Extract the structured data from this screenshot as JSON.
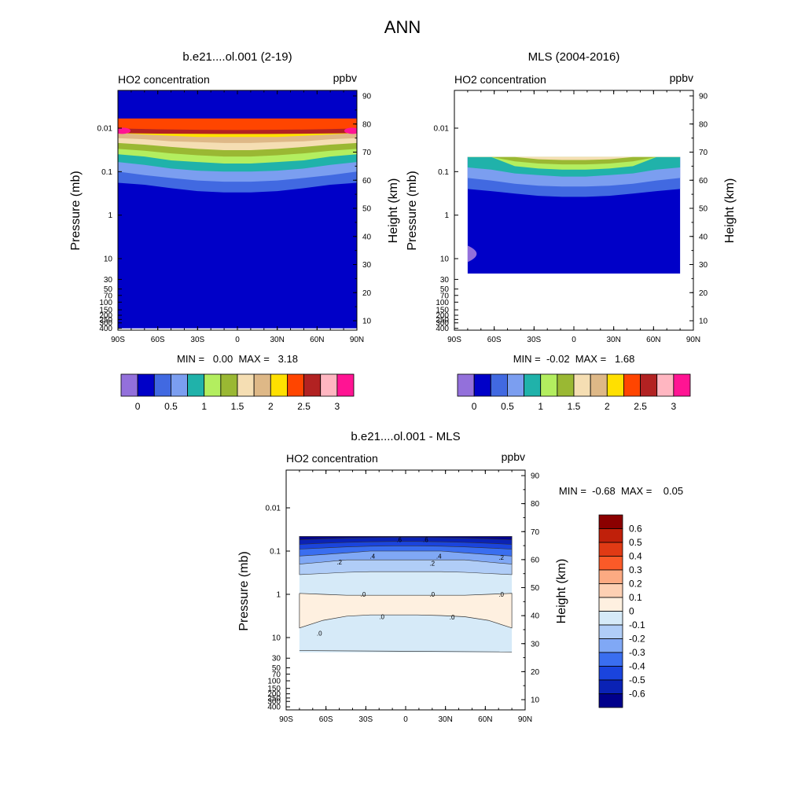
{
  "figure_title": "ANN",
  "chart_data": [
    {
      "type": "heatmap",
      "panel": "model",
      "title": "b.e21....ol.001 (2-19)",
      "left_label": "HO2 concentration",
      "right_label": "ppbv",
      "xlabel": "",
      "ylabel": "Pressure (mb)",
      "ylabel_right": "Height (km)",
      "x_ticks": [
        "90S",
        "60S",
        "30S",
        "0",
        "30N",
        "60N",
        "90N"
      ],
      "x_tick_values": [
        -90,
        -60,
        -30,
        0,
        30,
        60,
        90
      ],
      "y_ticks": [
        "0.01",
        "0.1",
        "1",
        "10",
        "30",
        "50",
        "70",
        "100",
        "150",
        "200",
        "250",
        "300",
        "400"
      ],
      "y_tick_values": [
        0.01,
        0.1,
        1,
        10,
        30,
        50,
        70,
        100,
        150,
        200,
        250,
        300,
        400
      ],
      "height_ticks": [
        "90",
        "80",
        "70",
        "60",
        "50",
        "40",
        "30",
        "20",
        "10"
      ],
      "height_tick_values": [
        90,
        80,
        70,
        60,
        50,
        40,
        30,
        20,
        10
      ],
      "ylim": [
        400,
        0.0015
      ],
      "xlim": [
        -90,
        90
      ],
      "stats": "MIN =   0.00  MAX =   3.18",
      "colorbar": {
        "labels": [
          "0",
          "0.5",
          "1",
          "1.5",
          "2",
          "2.5",
          "3"
        ],
        "label_values": [
          0,
          0.5,
          1,
          1.5,
          2,
          2.5,
          3
        ],
        "colors": [
          "#9370db",
          "#0000c8",
          "#4169e1",
          "#7b9ef0",
          "#20b2aa",
          "#b3ee5f",
          "#9ab833",
          "#f5deb3",
          "#deb887",
          "#ffe000",
          "#ff4500",
          "#b22222",
          "#ffb6c1",
          "#ff1493"
        ],
        "levels": [
          0,
          0.25,
          0.5,
          0.75,
          1,
          1.25,
          1.5,
          1.75,
          2,
          2.25,
          2.5,
          2.75,
          3
        ]
      },
      "bands": [
        {
          "level": 0.25,
          "color": "#4169e1",
          "pressure": [
            0.18,
            0.2,
            0.24,
            0.28,
            0.3,
            0.3,
            0.28,
            0.24,
            0.2,
            0.18
          ]
        },
        {
          "level": 0.5,
          "color": "#7b9ef0",
          "pressure": [
            0.1,
            0.12,
            0.14,
            0.16,
            0.17,
            0.17,
            0.16,
            0.14,
            0.12,
            0.1
          ]
        },
        {
          "level": 0.75,
          "color": "#20b2aa",
          "pressure": [
            0.06,
            0.07,
            0.085,
            0.095,
            0.1,
            0.1,
            0.095,
            0.085,
            0.07,
            0.06
          ]
        },
        {
          "level": 1,
          "color": "#b3ee5f",
          "pressure": [
            0.04,
            0.045,
            0.055,
            0.06,
            0.065,
            0.065,
            0.06,
            0.055,
            0.045,
            0.04
          ]
        },
        {
          "level": 1.25,
          "color": "#9ab833",
          "pressure": [
            0.03,
            0.033,
            0.038,
            0.042,
            0.045,
            0.045,
            0.042,
            0.038,
            0.033,
            0.03
          ]
        },
        {
          "level": 1.5,
          "color": "#f5deb3",
          "pressure": [
            0.022,
            0.024,
            0.027,
            0.03,
            0.032,
            0.032,
            0.03,
            0.027,
            0.024,
            0.022
          ]
        },
        {
          "level": 1.75,
          "color": "#deb887",
          "pressure": [
            0.017,
            0.018,
            0.02,
            0.021,
            0.022,
            0.022,
            0.021,
            0.02,
            0.018,
            0.017
          ]
        },
        {
          "level": 2,
          "color": "#ffe000",
          "pressure": [
            0.013,
            0.014,
            0.015,
            0.016,
            0.016,
            0.016,
            0.016,
            0.015,
            0.014,
            0.013
          ]
        },
        {
          "level": 2.25,
          "color": "#ff4500",
          "pressure": [
            0.011,
            0.012,
            0.0125,
            0.013,
            0.013,
            0.013,
            0.013,
            0.0125,
            0.012,
            0.011
          ]
        }
      ],
      "top_band": {
        "color": "#0000c8",
        "pressure": 0.006
      },
      "base_color": "#0000c8"
    },
    {
      "type": "heatmap",
      "panel": "obs",
      "title": "MLS (2004-2016)",
      "left_label": "HO2 concentration",
      "right_label": "ppbv",
      "xlabel": "",
      "ylabel": "Pressure (mb)",
      "ylabel_right": "Height (km)",
      "x_ticks": [
        "90S",
        "60S",
        "30S",
        "0",
        "30N",
        "60N",
        "90N"
      ],
      "x_tick_values": [
        -90,
        -60,
        -30,
        0,
        30,
        60,
        90
      ],
      "y_ticks": [
        "0.01",
        "0.1",
        "1",
        "10",
        "30",
        "50",
        "70",
        "100",
        "150",
        "200",
        "250",
        "300",
        "400"
      ],
      "y_tick_values": [
        0.01,
        0.1,
        1,
        10,
        30,
        50,
        70,
        100,
        150,
        200,
        250,
        300,
        400
      ],
      "height_ticks": [
        "90",
        "80",
        "70",
        "60",
        "50",
        "40",
        "30",
        "20",
        "10"
      ],
      "height_tick_values": [
        90,
        80,
        70,
        60,
        50,
        40,
        30,
        20,
        10
      ],
      "ylim": [
        400,
        0.0015
      ],
      "xlim": [
        -90,
        90
      ],
      "data_lat_range": [
        -80,
        80
      ],
      "data_pressure_range": [
        0.046,
        22
      ],
      "stats": "MIN =  -0.02  MAX =   1.68",
      "colorbar": {
        "labels": [
          "0",
          "0.5",
          "1",
          "1.5",
          "2",
          "2.5",
          "3"
        ],
        "label_values": [
          0,
          0.5,
          1,
          1.5,
          2,
          2.5,
          3
        ],
        "colors": [
          "#9370db",
          "#0000c8",
          "#4169e1",
          "#7b9ef0",
          "#20b2aa",
          "#b3ee5f",
          "#9ab833",
          "#f5deb3",
          "#deb887",
          "#ffe000",
          "#ff4500",
          "#b22222",
          "#ffb6c1",
          "#ff1493"
        ],
        "levels": [
          0,
          0.25,
          0.5,
          0.75,
          1,
          1.25,
          1.5,
          1.75,
          2,
          2.25,
          2.5,
          2.75,
          3
        ]
      },
      "bands": [
        {
          "level": 0.25,
          "color": "#4169e1",
          "pressure": [
            0.25,
            0.28,
            0.32,
            0.36,
            0.38,
            0.38,
            0.36,
            0.32,
            0.28,
            0.25
          ]
        },
        {
          "level": 0.5,
          "color": "#7b9ef0",
          "pressure": [
            0.14,
            0.16,
            0.19,
            0.21,
            0.22,
            0.22,
            0.21,
            0.19,
            0.16,
            0.14
          ]
        },
        {
          "level": 0.75,
          "color": "#20b2aa",
          "pressure": [
            0.08,
            0.09,
            0.11,
            0.12,
            0.13,
            0.13,
            0.12,
            0.11,
            0.09,
            0.08
          ]
        },
        {
          "level": 1,
          "color": "#b3ee5f",
          "pressure": [
            0.046,
            0.046,
            0.075,
            0.085,
            0.09,
            0.09,
            0.085,
            0.075,
            0.046,
            0.046
          ]
        },
        {
          "level": 1.25,
          "color": "#9ab833",
          "pressure": [
            0.046,
            0.046,
            0.058,
            0.065,
            0.068,
            0.068,
            0.065,
            0.058,
            0.046,
            0.046
          ]
        },
        {
          "level": 1.5,
          "color": "#f5deb3",
          "pressure": [
            0.046,
            0.046,
            0.046,
            0.052,
            0.054,
            0.054,
            0.052,
            0.046,
            0.046,
            0.046
          ]
        }
      ],
      "base_color": "#0000c8",
      "patch": {
        "color": "#9370db",
        "lat": [
          -80,
          -70
        ],
        "pressure": [
          5,
          12
        ]
      }
    },
    {
      "type": "heatmap",
      "panel": "diff",
      "title": "b.e21....ol.001 - MLS",
      "left_label": "HO2 concentration",
      "right_label": "ppbv",
      "xlabel": "",
      "ylabel": "Pressure (mb)",
      "ylabel_right": "Height (km)",
      "x_ticks": [
        "90S",
        "60S",
        "30S",
        "0",
        "30N",
        "60N",
        "90N"
      ],
      "x_tick_values": [
        -90,
        -60,
        -30,
        0,
        30,
        60,
        90
      ],
      "y_ticks": [
        "0.01",
        "0.1",
        "1",
        "10",
        "30",
        "50",
        "70",
        "100",
        "150",
        "200",
        "250",
        "300",
        "400"
      ],
      "y_tick_values": [
        0.01,
        0.1,
        1,
        10,
        30,
        50,
        70,
        100,
        150,
        200,
        250,
        300,
        400
      ],
      "height_ticks": [
        "90",
        "80",
        "70",
        "60",
        "50",
        "40",
        "30",
        "20",
        "10"
      ],
      "height_tick_values": [
        90,
        80,
        70,
        60,
        50,
        40,
        30,
        20,
        10
      ],
      "ylim": [
        400,
        0.0015
      ],
      "xlim": [
        -90,
        90
      ],
      "data_lat_range": [
        -80,
        80
      ],
      "data_pressure_range": [
        0.046,
        22
      ],
      "stats": "MIN =  -0.68  MAX =    0.05",
      "colorbar": {
        "labels": [
          "0.6",
          "0.5",
          "0.4",
          "0.3",
          "0.2",
          "0.1",
          "0",
          "-0.1",
          "-0.2",
          "-0.3",
          "-0.4",
          "-0.5",
          "-0.6"
        ],
        "label_values": [
          0.6,
          0.5,
          0.4,
          0.3,
          0.2,
          0.1,
          0,
          -0.1,
          -0.2,
          -0.3,
          -0.4,
          -0.5,
          -0.6
        ],
        "colors": [
          "#8b0000",
          "#c0200a",
          "#e03a14",
          "#fa5a28",
          "#fcaa82",
          "#fdd0b3",
          "#fef0e0",
          "#d6eaf8",
          "#b0cdf7",
          "#80a8f5",
          "#3a6ef0",
          "#1a44dd",
          "#0a22b5",
          "#00008b"
        ]
      },
      "bands": [
        {
          "level": -0.1,
          "color": "#fef0e0",
          "pressure": [
            0.95,
            1,
            1.05,
            1.05,
            1.05,
            1.05,
            1.05,
            1.05,
            1,
            0.95
          ]
        },
        {
          "level": 0,
          "color": "#d6eaf8",
          "pressure": [
            6,
            4,
            3.2,
            3,
            3,
            3,
            3.1,
            3.3,
            4,
            6
          ]
        },
        {
          "level": -0.1,
          "color": "#d6eaf8",
          "pressure": [
            20,
            20.5,
            21,
            21,
            21,
            21,
            21,
            21,
            20.5,
            20
          ]
        }
      ],
      "upper_bands": [
        {
          "color": "#b0cdf7",
          "pressure": [
            0.35,
            0.33,
            0.31,
            0.3,
            0.3,
            0.3,
            0.3,
            0.31,
            0.33,
            0.35
          ]
        },
        {
          "color": "#80a8f5",
          "pressure": [
            0.2,
            0.18,
            0.16,
            0.16,
            0.16,
            0.16,
            0.16,
            0.16,
            0.18,
            0.2
          ]
        },
        {
          "color": "#3a6ef0",
          "pressure": [
            0.13,
            0.12,
            0.11,
            0.1,
            0.1,
            0.1,
            0.1,
            0.11,
            0.12,
            0.13
          ]
        },
        {
          "color": "#1a44dd",
          "pressure": [
            0.09,
            0.085,
            0.08,
            0.077,
            0.076,
            0.076,
            0.077,
            0.08,
            0.085,
            0.09
          ]
        },
        {
          "color": "#0a22b5",
          "pressure": [
            0.07,
            0.066,
            0.063,
            0.061,
            0.06,
            0.06,
            0.061,
            0.063,
            0.066,
            0.07
          ]
        },
        {
          "color": "#00008b",
          "pressure": [
            0.055,
            0.052,
            0.05,
            0.049,
            0.048,
            0.048,
            0.049,
            0.05,
            0.052,
            0.055
          ]
        }
      ],
      "contour_labels": [
        {
          "text": ".6",
          "lat": -5,
          "pressure": 0.055
        },
        {
          "text": ".6",
          "lat": 15,
          "pressure": 0.055
        },
        {
          "text": ".4",
          "lat": -25,
          "pressure": 0.13
        },
        {
          "text": ".4",
          "lat": 25,
          "pressure": 0.13
        },
        {
          "text": ".2",
          "lat": -50,
          "pressure": 0.18
        },
        {
          "text": ".2",
          "lat": 20,
          "pressure": 0.19
        },
        {
          "text": ".2",
          "lat": 72,
          "pressure": 0.14
        },
        {
          "text": ".0",
          "lat": -32,
          "pressure": 1
        },
        {
          "text": ".0",
          "lat": 20,
          "pressure": 1
        },
        {
          "text": ".0",
          "lat": 72,
          "pressure": 1
        },
        {
          "text": ".0",
          "lat": -65,
          "pressure": 8
        },
        {
          "text": ".0",
          "lat": -18,
          "pressure": 3.3
        },
        {
          "text": ".0",
          "lat": 35,
          "pressure": 3.4
        }
      ]
    }
  ]
}
